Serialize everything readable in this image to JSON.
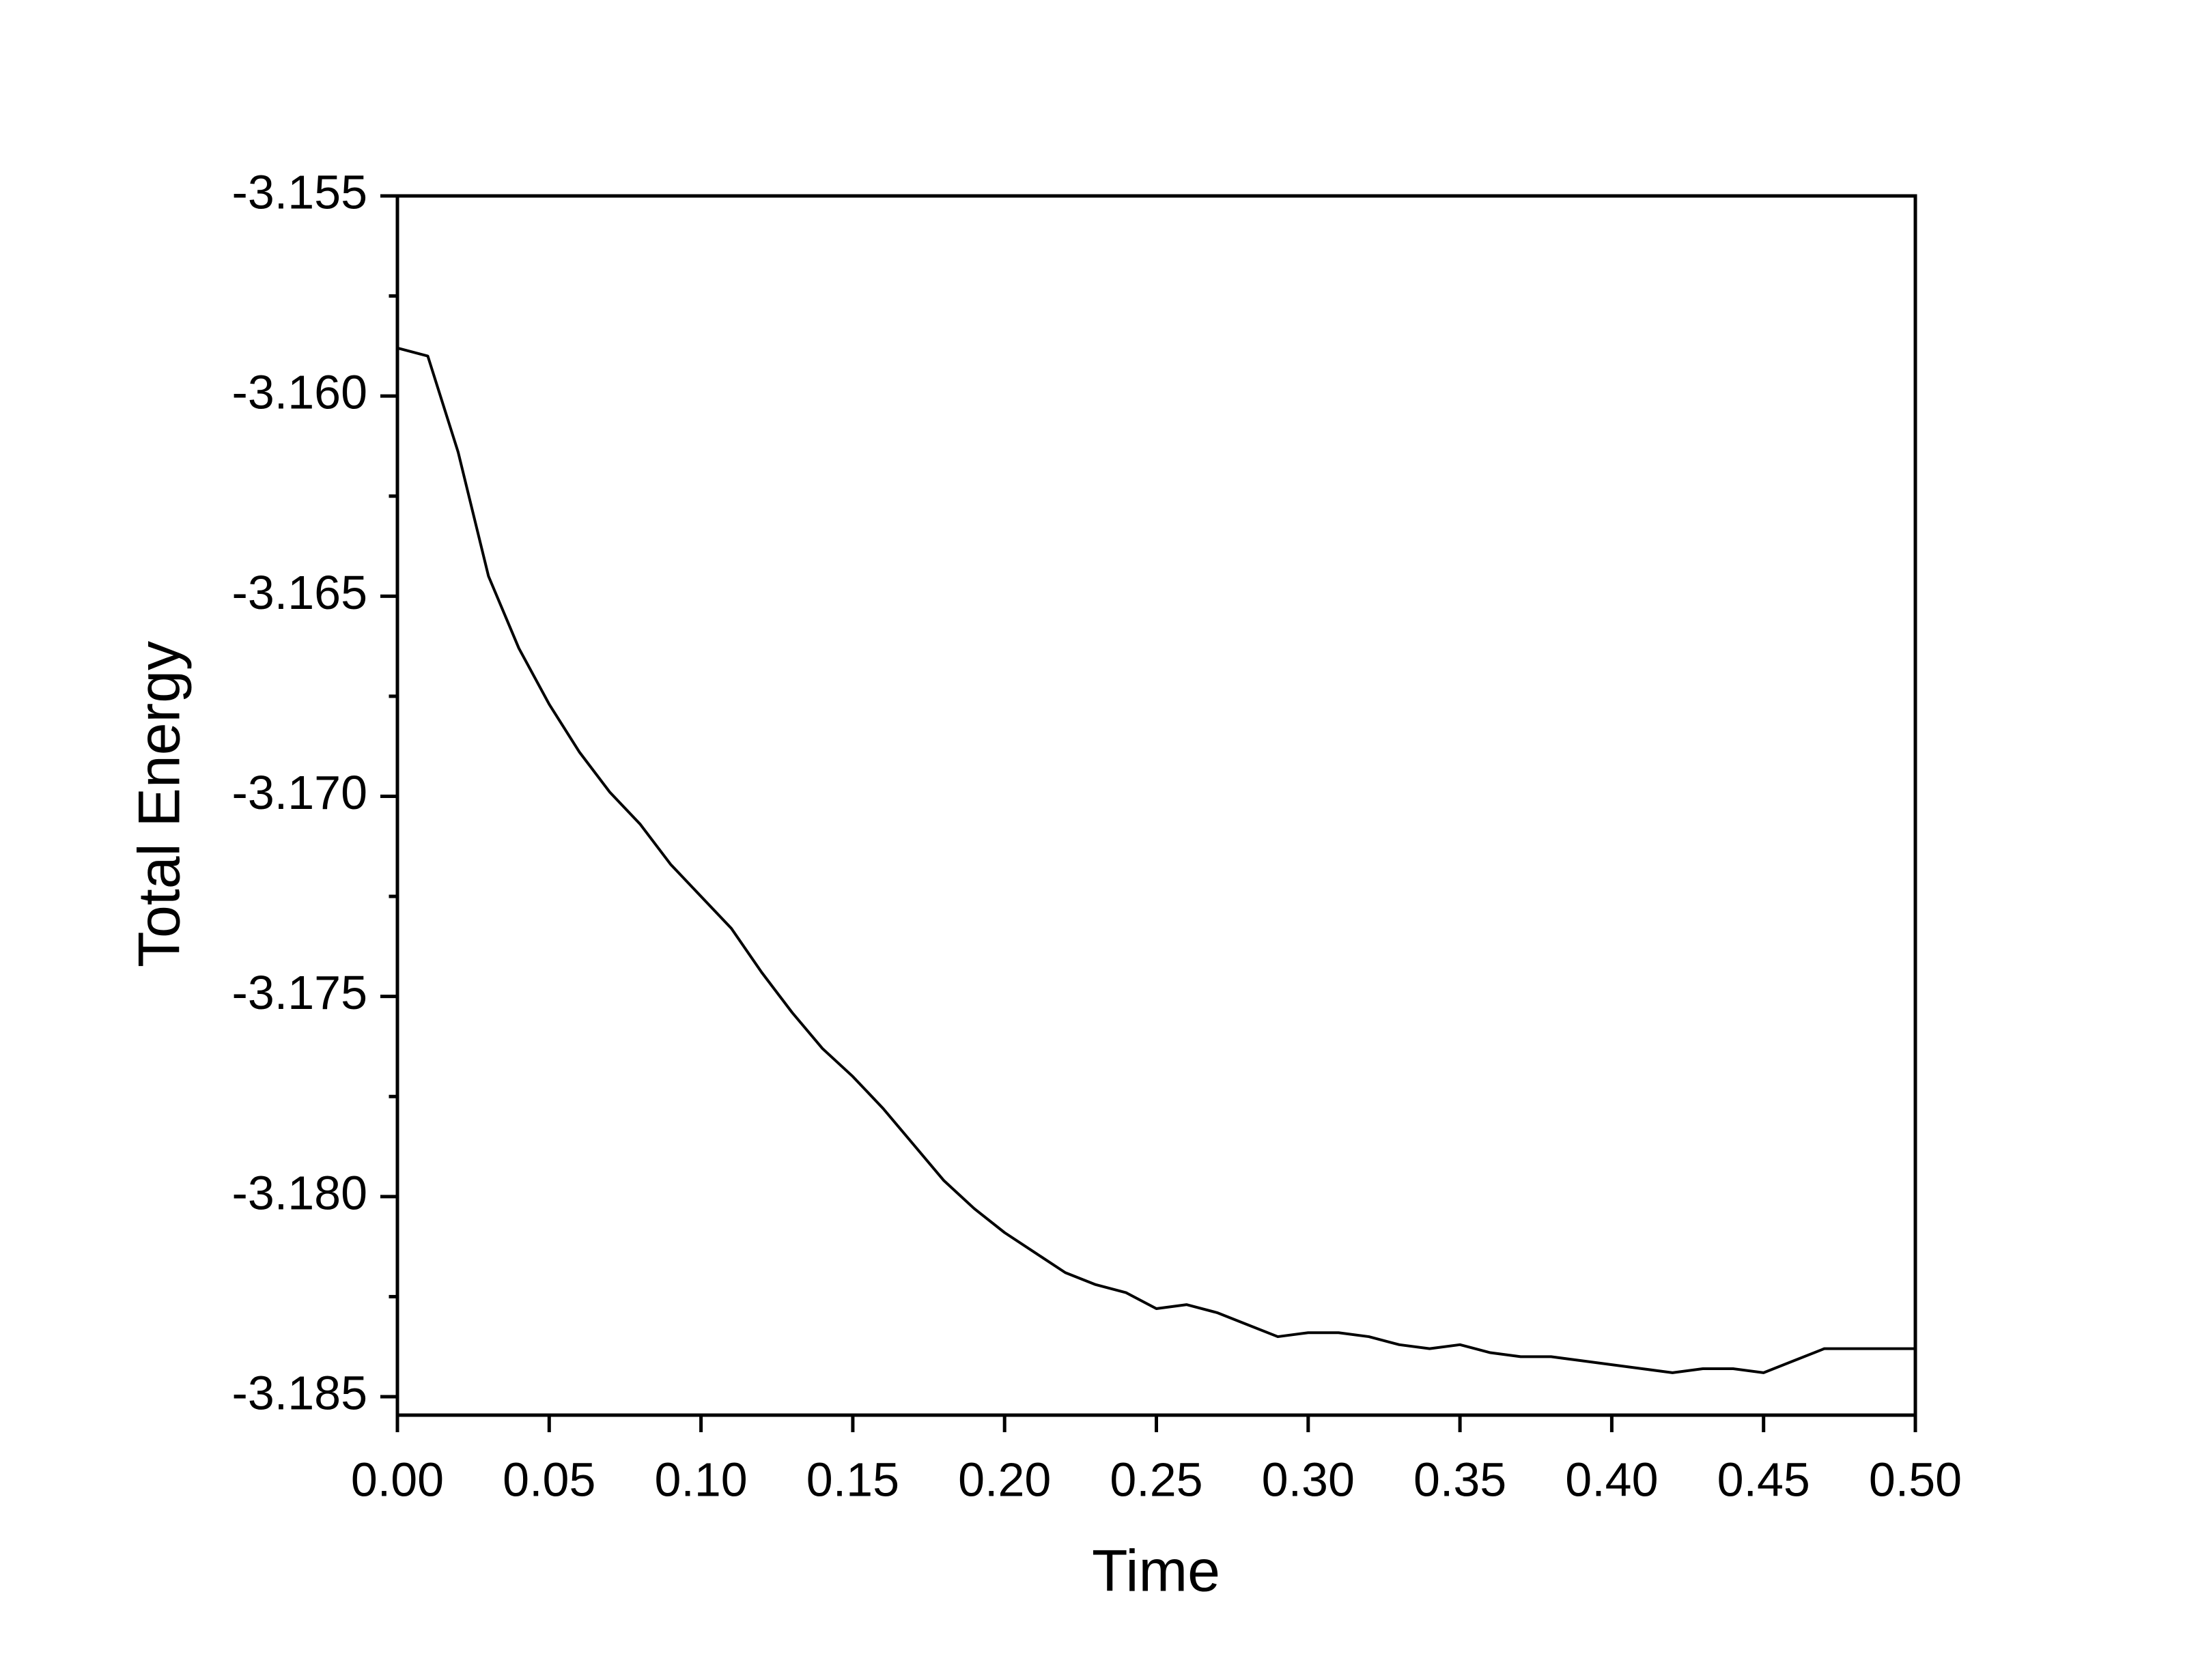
{
  "chart_data": {
    "type": "line",
    "x_label": "Time",
    "y_label": "Total Energy",
    "x": [
      0,
      0.01,
      0.02,
      0.03,
      0.04,
      0.05,
      0.06,
      0.07,
      0.08,
      0.09,
      0.1,
      0.11,
      0.12,
      0.13,
      0.14,
      0.15,
      0.16,
      0.17,
      0.18,
      0.19,
      0.2,
      0.21,
      0.22,
      0.23,
      0.24,
      0.25,
      0.26,
      0.27,
      0.28,
      0.29,
      0.3,
      0.31,
      0.32,
      0.33,
      0.34,
      0.35,
      0.36,
      0.37,
      0.38,
      0.39,
      0.4,
      0.41,
      0.42,
      0.43,
      0.44,
      0.45,
      0.46,
      0.47,
      0.48,
      0.49,
      0.5
    ],
    "values": [
      -3.1588,
      -3.159,
      -3.1614,
      -3.1645,
      -3.1663,
      -3.1677,
      -3.1689,
      -3.1699,
      -3.1707,
      -3.1717,
      -3.1725,
      -3.1733,
      -3.1744,
      -3.1754,
      -3.1763,
      -3.177,
      -3.1778,
      -3.1787,
      -3.1796,
      -3.1803,
      -3.1809,
      -3.1814,
      -3.1819,
      -3.1822,
      -3.1824,
      -3.1828,
      -3.1827,
      -3.1829,
      -3.1832,
      -3.1835,
      -3.1834,
      -3.1834,
      -3.1835,
      -3.1837,
      -3.1838,
      -3.1837,
      -3.1839,
      -3.184,
      -3.184,
      -3.1841,
      -3.1842,
      -3.1843,
      -3.1844,
      -3.1843,
      -3.1843,
      -3.1844,
      -3.1841,
      -3.1838,
      -3.1838,
      -3.1838,
      -3.1838
    ],
    "color": "#000000",
    "xlim": [
      0,
      0.5
    ],
    "xticks": [
      {
        "value": 0,
        "label": "0.00"
      },
      0.05,
      {
        "value": 0.1,
        "label": "0.10"
      },
      0.15,
      {
        "value": 0.2,
        "label": "0.20"
      },
      0.25,
      {
        "value": 0.3,
        "label": "0.30"
      },
      0.35,
      {
        "value": 0.4,
        "label": "0.40"
      },
      0.45,
      {
        "value": 0.5,
        "label": "0.50"
      }
    ],
    "ylim": [
      -3.18546,
      -3.155
    ],
    "yticks": [
      -3.155,
      {
        "value": -3.16,
        "label": "-3.160"
      },
      -3.165,
      {
        "value": -3.17,
        "label": "-3.170"
      },
      -3.175,
      {
        "value": -3.18,
        "label": "-3.180"
      },
      -3.185
    ],
    "grid": false
  }
}
